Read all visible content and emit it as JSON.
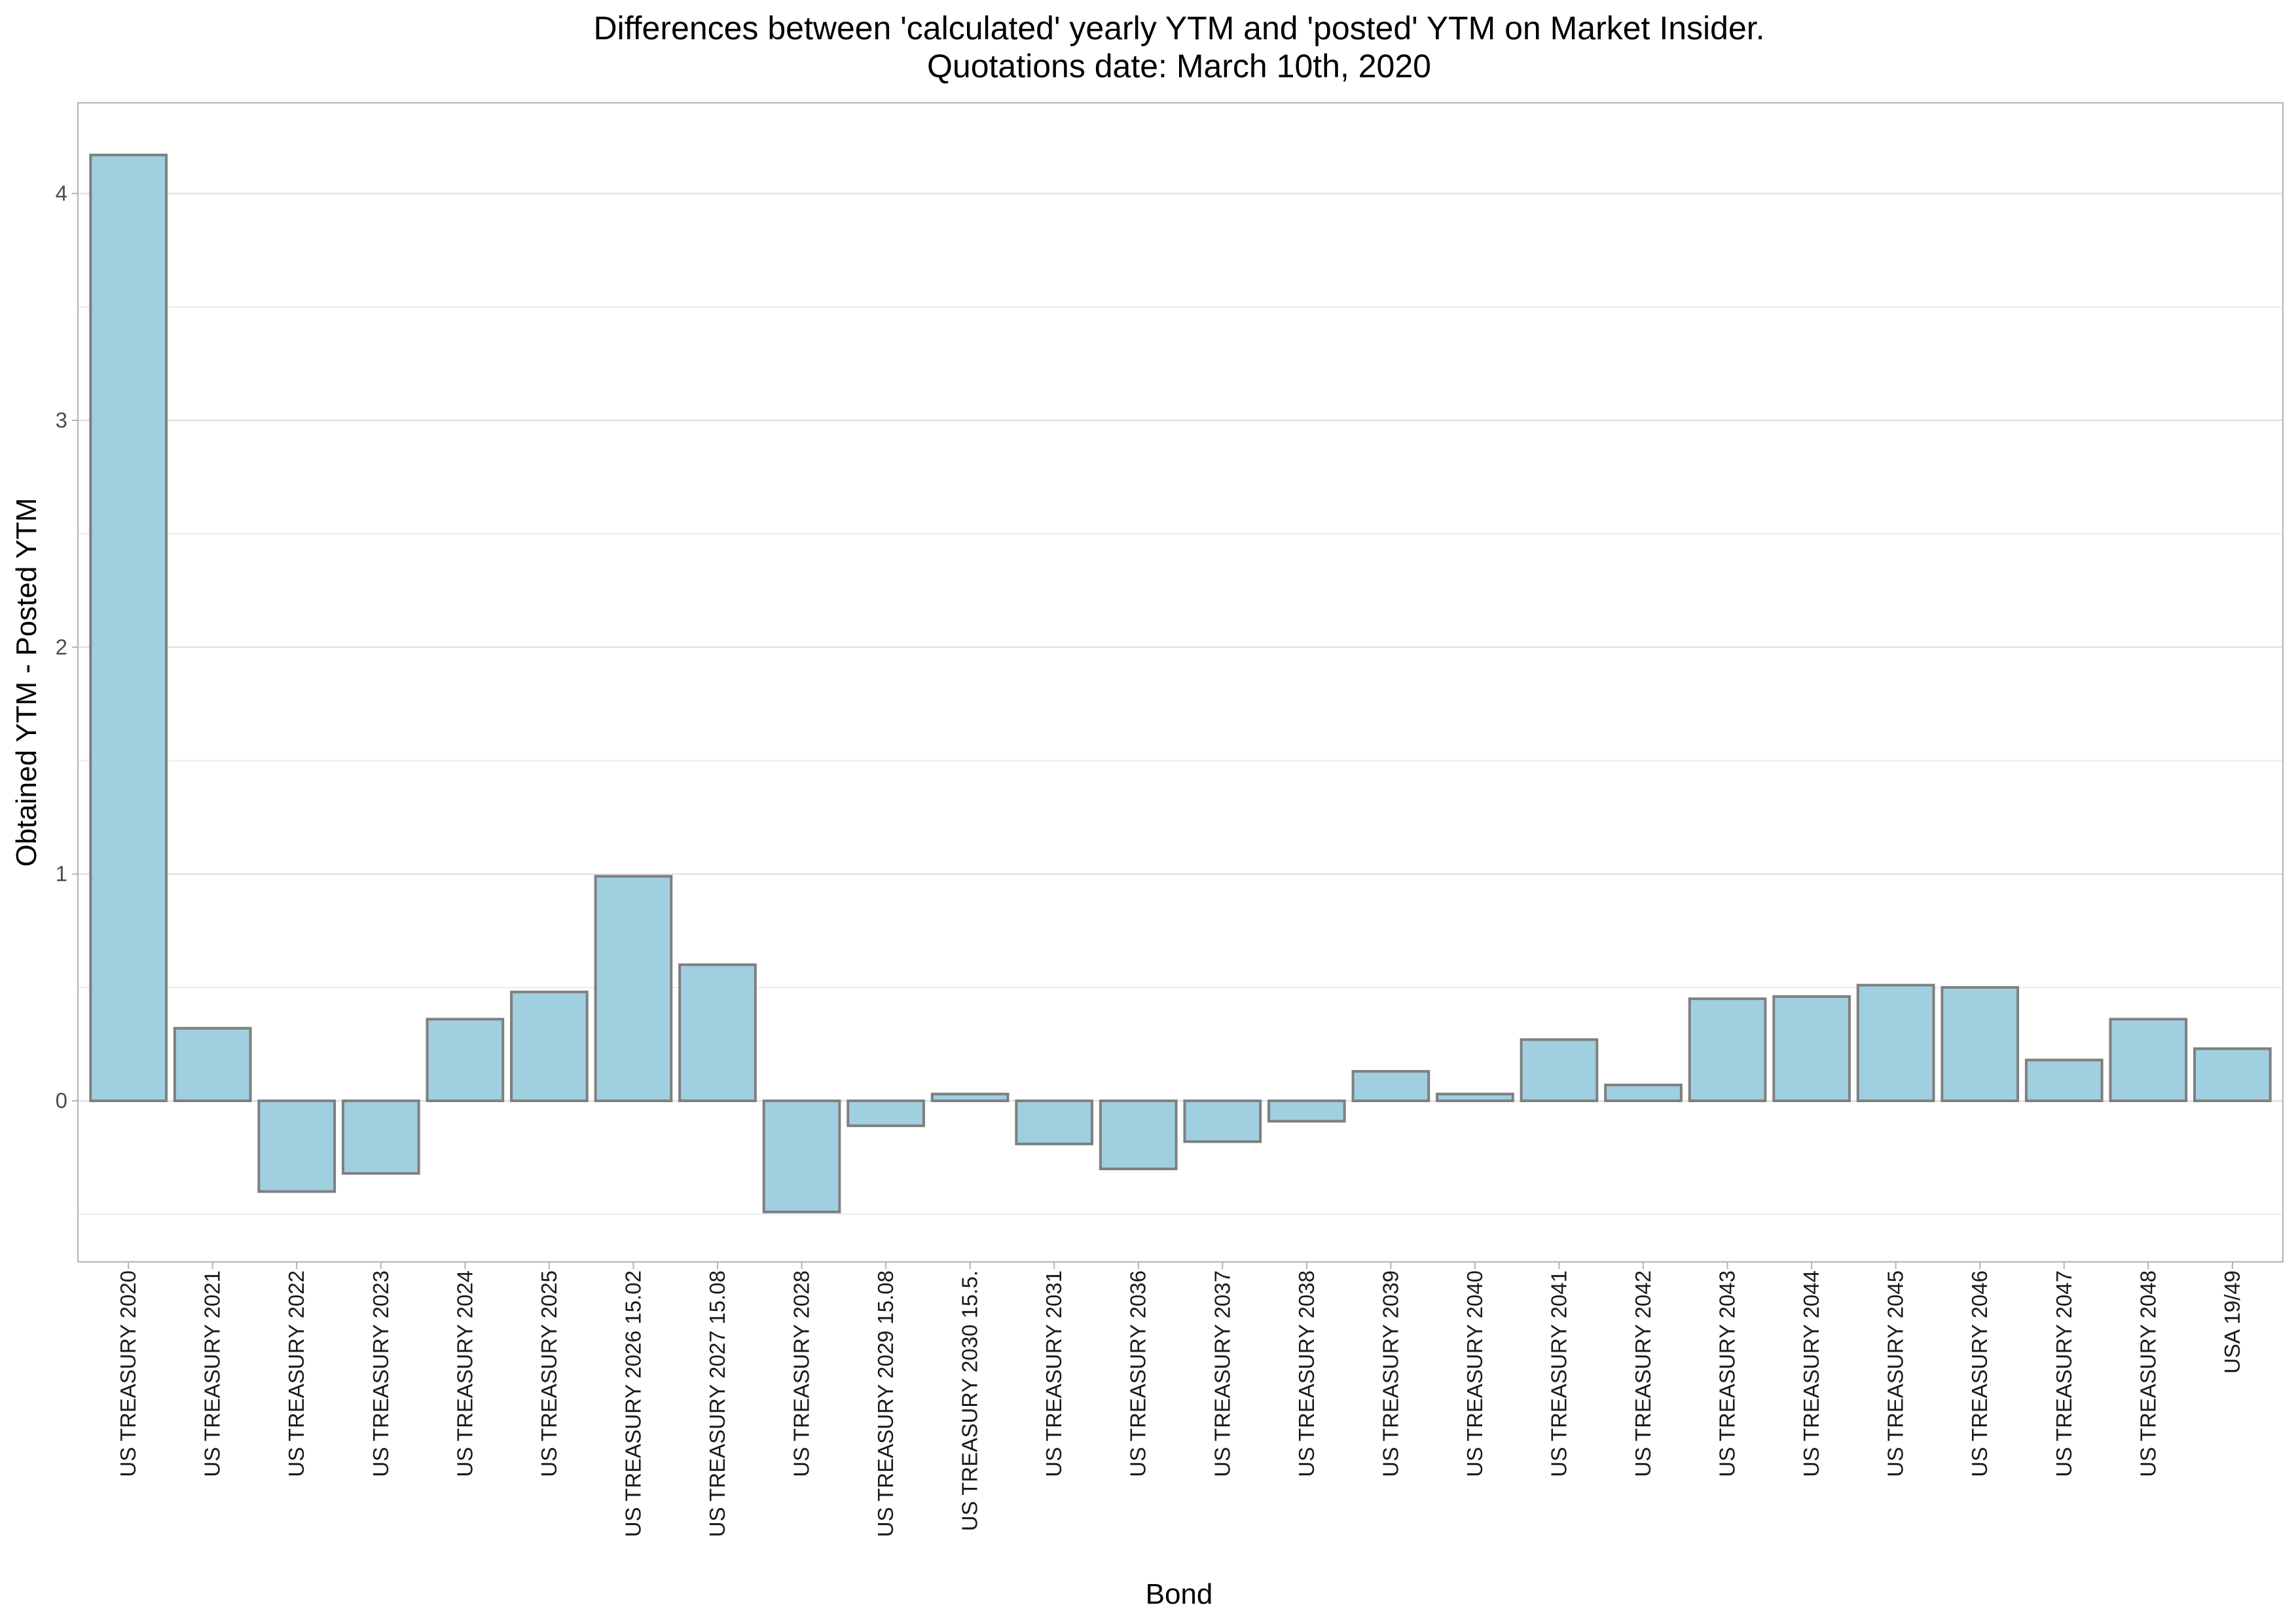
{
  "chart_data": {
    "type": "bar",
    "title": "Differences between 'calculated' yearly YTM and 'posted' YTM on Market Insider.",
    "subtitle": "Quotations date: March 10th, 2020",
    "xlabel": "Bond",
    "ylabel": "Obtained YTM - Posted YTM",
    "categories": [
      "US TREASURY 2020",
      "US TREASURY 2021",
      "US TREASURY 2022",
      "US TREASURY 2023",
      "US TREASURY 2024",
      "US TREASURY 2025",
      "US TREASURY 2026 15.02",
      "US TREASURY 2027 15.08",
      "US TREASURY 2028",
      "US TREASURY 2029 15.08",
      "US TREASURY 2030 15.5.",
      "US TREASURY 2031",
      "US TREASURY 2036",
      "US TREASURY 2037",
      "US TREASURY 2038",
      "US TREASURY 2039",
      "US TREASURY 2040",
      "US TREASURY 2041",
      "US TREASURY 2042",
      "US TREASURY 2043",
      "US TREASURY 2044",
      "US TREASURY 2045",
      "US TREASURY 2046",
      "US TREASURY 2047",
      "US TREASURY 2048",
      "USA 19/49"
    ],
    "values": [
      4.17,
      0.32,
      -0.4,
      -0.32,
      0.36,
      0.48,
      0.99,
      0.6,
      -0.49,
      -0.11,
      0.03,
      -0.19,
      -0.3,
      -0.18,
      -0.09,
      0.13,
      0.03,
      0.27,
      0.07,
      0.45,
      0.46,
      0.51,
      0.5,
      0.18,
      0.36,
      0.23
    ],
    "yticks": [
      0,
      1,
      2,
      3,
      4
    ],
    "ylim": [
      -0.71,
      4.4
    ],
    "grid": true,
    "legend": "none",
    "colors": {
      "bar_fill": "#a0cfe0",
      "bar_stroke": "#7f7f7f",
      "grid": "#dcdcdc",
      "panel_border": "#b3b3b3"
    }
  }
}
